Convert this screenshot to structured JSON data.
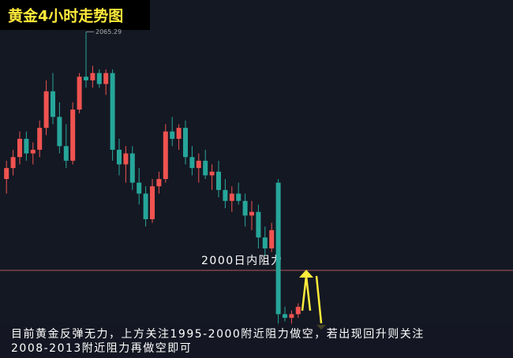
{
  "chart_data": {
    "type": "candlestick",
    "title": "黄金4小时走势图",
    "open": [
      2025,
      2028,
      2031,
      2036,
      2032,
      2033,
      2039,
      2049,
      2042,
      2034,
      2030,
      2044,
      2053,
      2052,
      2054,
      2051,
      2054,
      2033,
      2029,
      2032,
      2024,
      2021,
      2014,
      2023,
      2025,
      2038,
      2036,
      2039,
      2031,
      2028,
      2030,
      2026,
      2027,
      2022,
      2019,
      2021,
      2019,
      2015,
      2016,
      2009,
      2006,
      2024,
      1988,
      1987,
      1988
    ],
    "high": [
      2030,
      2033,
      2038,
      2038,
      2035,
      2041,
      2052,
      2054,
      2046,
      2040,
      2046,
      2054,
      2065.29,
      2056,
      2055,
      2055,
      2055,
      2036,
      2034,
      2034,
      2028,
      2023,
      2025,
      2027,
      2040,
      2042,
      2040,
      2041,
      2034,
      2032,
      2033,
      2029,
      2030,
      2025,
      2023,
      2024,
      2021,
      2019,
      2018,
      2012,
      2013,
      2025,
      1990,
      1989,
      1991
    ],
    "low": [
      2021,
      2026,
      2029,
      2030,
      2029,
      2031,
      2037,
      2040,
      2032,
      2028,
      2029,
      2043,
      2050,
      2050,
      2050,
      2048,
      2030,
      2026,
      2024,
      2022,
      2018,
      2012,
      2013,
      2021,
      2024,
      2034,
      2033,
      2029,
      2026,
      2024,
      2025,
      2022,
      2020,
      2017,
      2016,
      2018,
      2012,
      2011,
      2006,
      2004,
      2005,
      1985,
      1986,
      1985,
      1987
    ],
    "close": [
      2028,
      2031,
      2036,
      2032,
      2033,
      2039,
      2049,
      2042,
      2034,
      2030,
      2044,
      2053,
      2052,
      2054,
      2051,
      2054,
      2033,
      2029,
      2032,
      2024,
      2021,
      2014,
      2023,
      2025,
      2038,
      2036,
      2039,
      2031,
      2028,
      2030,
      2026,
      2027,
      2022,
      2019,
      2021,
      2019,
      2015,
      2016,
      2009,
      2006,
      2011,
      1988,
      1987,
      1988,
      1990
    ],
    "up_color": "#ef5350",
    "down_color": "#26a69a",
    "ylim": [
      1976,
      2074
    ],
    "resistance": {
      "value": 2000,
      "label": "2000日内阻力"
    },
    "annotations": [
      "目前黄金反弹无力，上方关注1995-2000附近阻力做空，若出现回升则关注",
      "2008-2013附近阻力再做空即可"
    ]
  }
}
